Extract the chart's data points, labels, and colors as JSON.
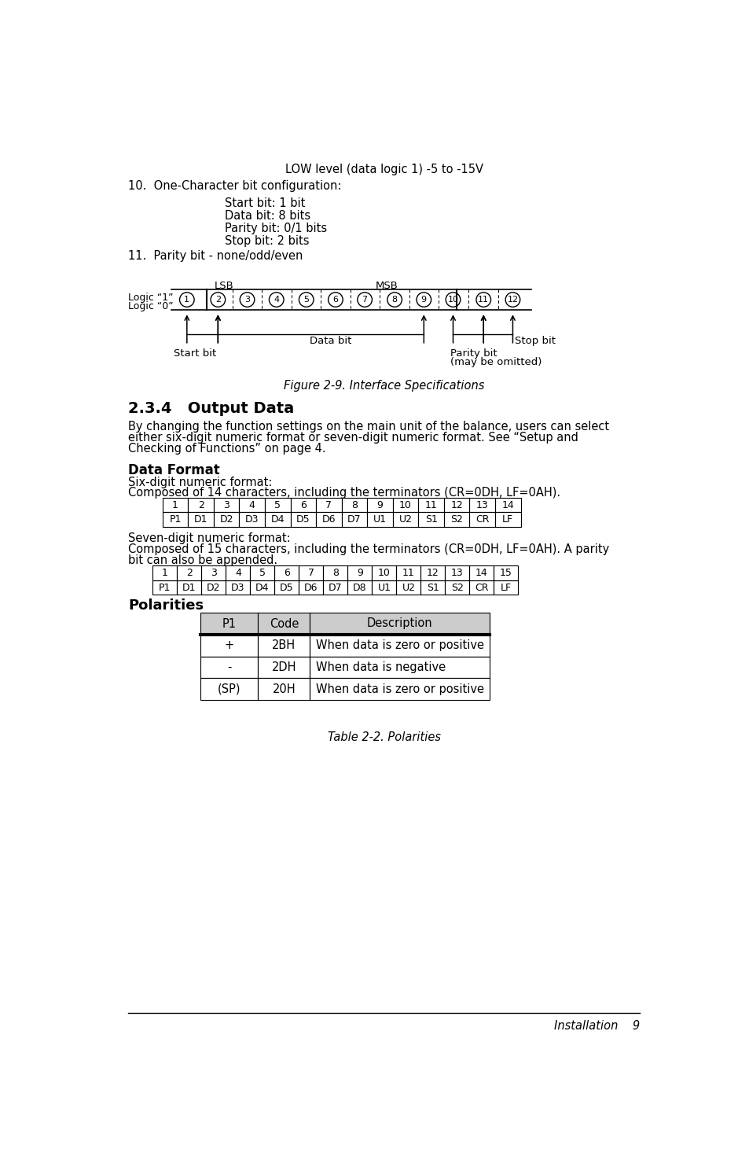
{
  "bg_color": "#ffffff",
  "line1": "LOW level (data logic 1) -5 to -15V",
  "line2": "10.  One-Character bit configuration:",
  "line3_items": [
    "Start bit: 1 bit",
    "Data bit: 8 bits",
    "Parity bit: 0/1 bits",
    "Stop bit: 2 bits"
  ],
  "line4": "11.  Parity bit - none/odd/even",
  "figure_caption": "Figure 2-9. Interface Specifications",
  "section_title": "2.3.4   Output Data",
  "section_body1": "By changing the function settings on the main unit of the balance, users can select",
  "section_body2": "either six-digit numeric format or seven-digit numeric format. See “Setup and",
  "section_body3": "Checking of Functions” on page 4.",
  "subsection_data_format": "Data Format",
  "six_digit_intro1": "Six-digit numeric format:",
  "six_digit_intro2": "Composed of 14 characters, including the terminators (CR=0DH, LF=0AH).",
  "six_digit_header": [
    "1",
    "2",
    "3",
    "4",
    "5",
    "6",
    "7",
    "8",
    "9",
    "10",
    "11",
    "12",
    "13",
    "14"
  ],
  "six_digit_row": [
    "P1",
    "D1",
    "D2",
    "D3",
    "D4",
    "D5",
    "D6",
    "D7",
    "U1",
    "U2",
    "S1",
    "S2",
    "CR",
    "LF"
  ],
  "seven_digit_intro1": "Seven-digit numeric format:",
  "seven_digit_intro2a": "Composed of 15 characters, including the terminators (CR=0DH, LF=0AH). A parity",
  "seven_digit_intro2b": "bit can also be appended.",
  "seven_digit_header": [
    "1",
    "2",
    "3",
    "4",
    "5",
    "6",
    "7",
    "8",
    "9",
    "10",
    "11",
    "12",
    "13",
    "14",
    "15"
  ],
  "seven_digit_row": [
    "P1",
    "D1",
    "D2",
    "D3",
    "D4",
    "D5",
    "D6",
    "D7",
    "D8",
    "U1",
    "U2",
    "S1",
    "S2",
    "CR",
    "LF"
  ],
  "subsection_polarities": "Polarities",
  "polarity_headers": [
    "P1",
    "Code",
    "Description"
  ],
  "polarity_rows": [
    [
      "+",
      "2BH",
      "When data is zero or positive"
    ],
    [
      "-",
      "2DH",
      "When data is negative"
    ],
    [
      "(SP)",
      "20H",
      "When data is zero or positive"
    ]
  ],
  "table_caption": "Table 2-2. Polarities",
  "footer_text": "Installation    9"
}
